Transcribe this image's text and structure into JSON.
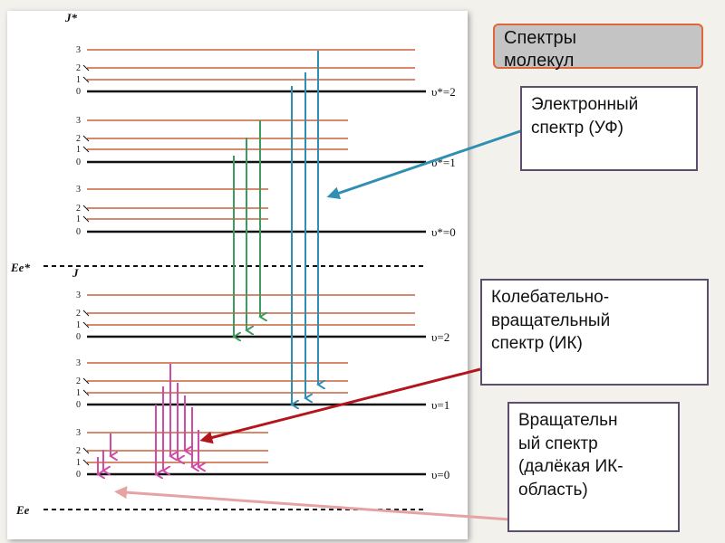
{
  "title": "Спектры\nмолекул",
  "axis_labels": {
    "excited_J": "J*",
    "ground_J": "J",
    "excited_energy": "Ee*",
    "ground_energy": "Ee"
  },
  "j_labels": [
    "0",
    "1",
    "2",
    "3"
  ],
  "vibrational_levels": [
    "υ*=2",
    "υ*=1",
    "υ*=0",
    "υ=2",
    "υ=1",
    "υ=0"
  ],
  "callouts": {
    "electronic": "Электронный\nспектр (УФ)",
    "vibrational": "Колебательно-\nвращательный\nспектр (ИК)",
    "rotational": "Вращательн\nый спектр\n(далёкая ИК-\nобласть)"
  },
  "colors": {
    "electronic": "#2f8fb3",
    "vibrational": "#3f9a5e",
    "rotational": "#d04aa8",
    "rotational_level": "#c8623b",
    "arrow_dark_red": "#b3151c",
    "arrow_pink": "#e6a3a3"
  }
}
